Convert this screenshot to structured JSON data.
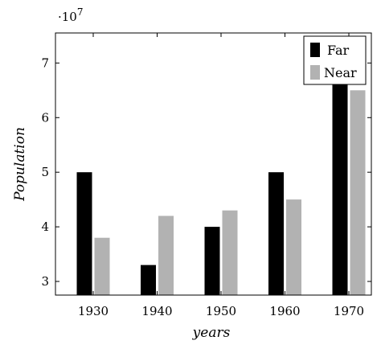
{
  "chart_data": {
    "type": "bar",
    "categories": [
      "1930",
      "1940",
      "1950",
      "1960",
      "1970"
    ],
    "series": [
      {
        "name": "Far",
        "color": "#000000",
        "values": [
          50000000,
          33000000,
          40000000,
          50000000,
          70000000
        ]
      },
      {
        "name": "Near",
        "color": "#b2b2b2",
        "values": [
          38000000,
          42000000,
          43000000,
          45000000,
          65000000
        ]
      }
    ],
    "title": "",
    "xlabel": "years",
    "ylabel": "Population",
    "y_multiplier": "·10",
    "y_multiplier_exponent": "7",
    "yticks": [
      30000000,
      40000000,
      50000000,
      60000000,
      70000000
    ],
    "ytick_labels": [
      "3",
      "4",
      "5",
      "6",
      "7"
    ],
    "ylim": [
      27500000,
      75500000
    ],
    "legend_position": "top-right",
    "grid": false
  }
}
